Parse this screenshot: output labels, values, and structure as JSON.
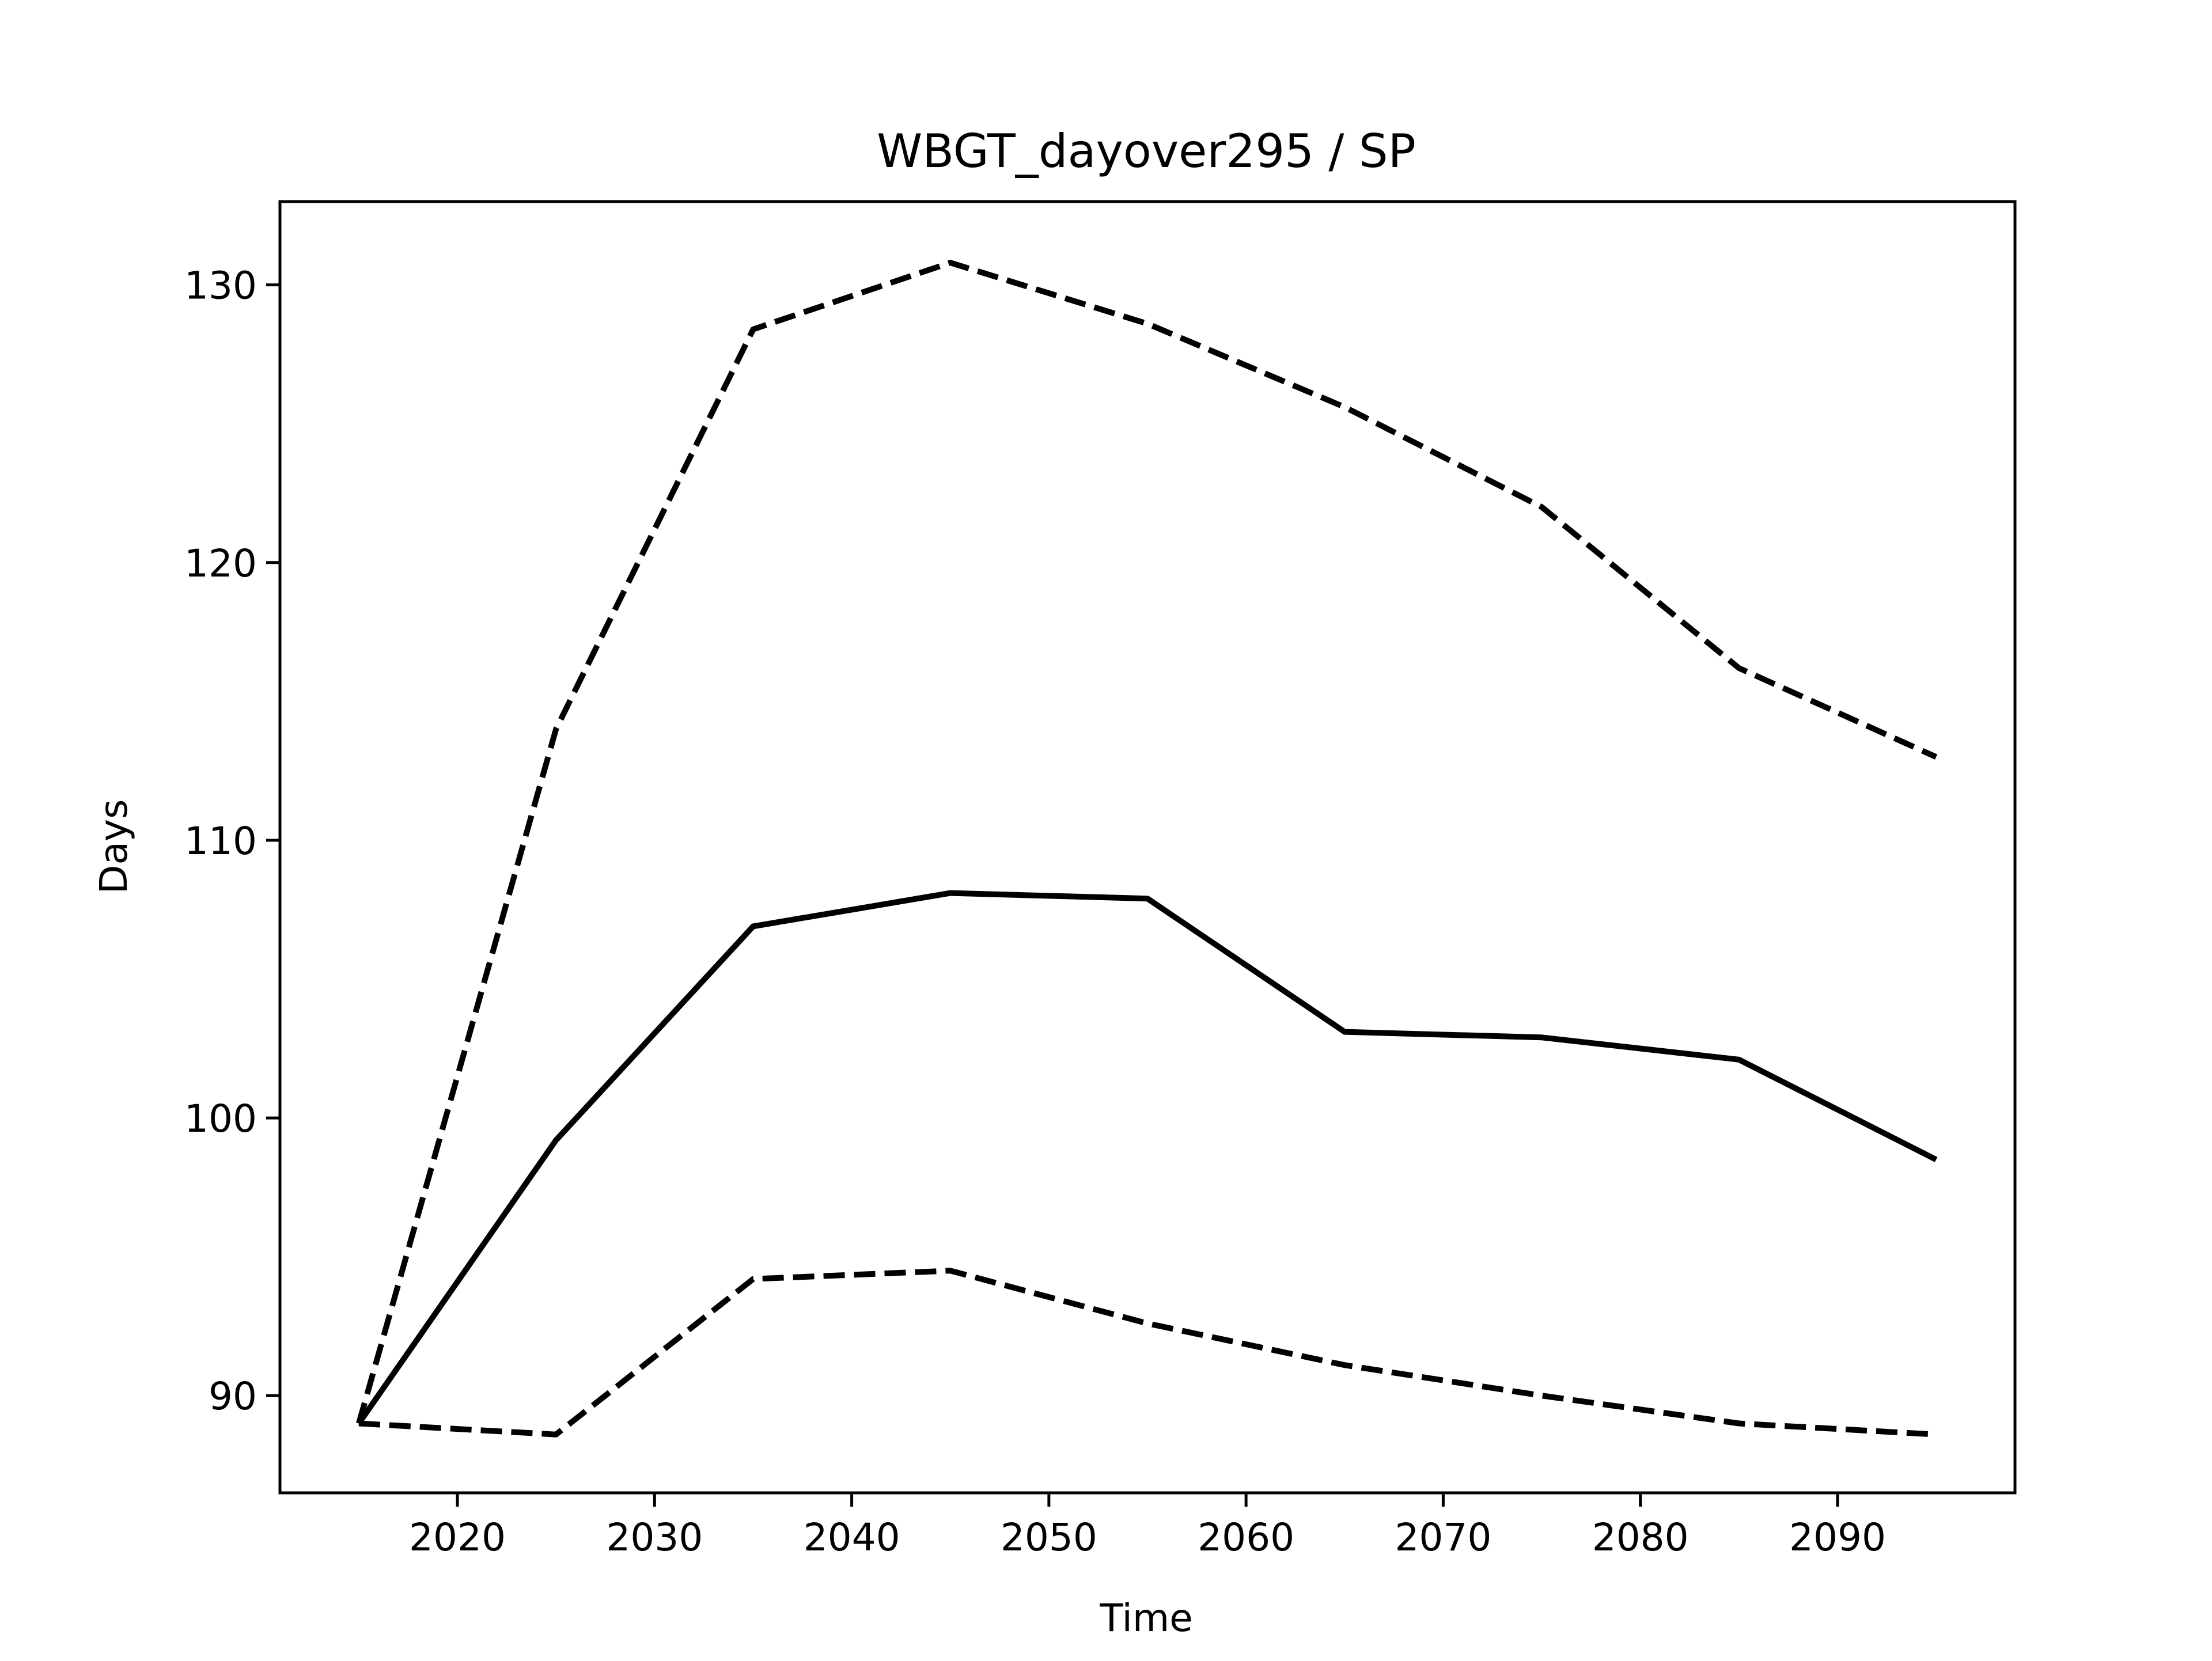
{
  "chart_data": {
    "type": "line",
    "title": "WBGT_dayover295 / SP",
    "xlabel": "Time",
    "ylabel": "Days",
    "x": [
      2015,
      2025,
      2035,
      2045,
      2055,
      2065,
      2075,
      2085,
      2095
    ],
    "xlim": [
      2011,
      2099
    ],
    "ylim": [
      86.5,
      133
    ],
    "xticks": [
      2020,
      2030,
      2040,
      2050,
      2060,
      2070,
      2080,
      2090
    ],
    "yticks": [
      90,
      100,
      110,
      120,
      130
    ],
    "grid": false,
    "series": [
      {
        "style": "solid",
        "color": "#000000",
        "values": [
          89.0,
          99.2,
          106.9,
          108.1,
          107.9,
          103.1,
          102.9,
          102.1,
          98.5
        ]
      },
      {
        "style": "dashed",
        "color": "#000000",
        "values": [
          89.0,
          114.0,
          128.4,
          130.8,
          128.6,
          125.6,
          122.0,
          116.2,
          113.0
        ]
      },
      {
        "style": "dashed",
        "color": "#000000",
        "values": [
          89.0,
          88.6,
          94.2,
          94.5,
          92.6,
          91.1,
          90.0,
          89.0,
          88.6
        ]
      }
    ]
  }
}
